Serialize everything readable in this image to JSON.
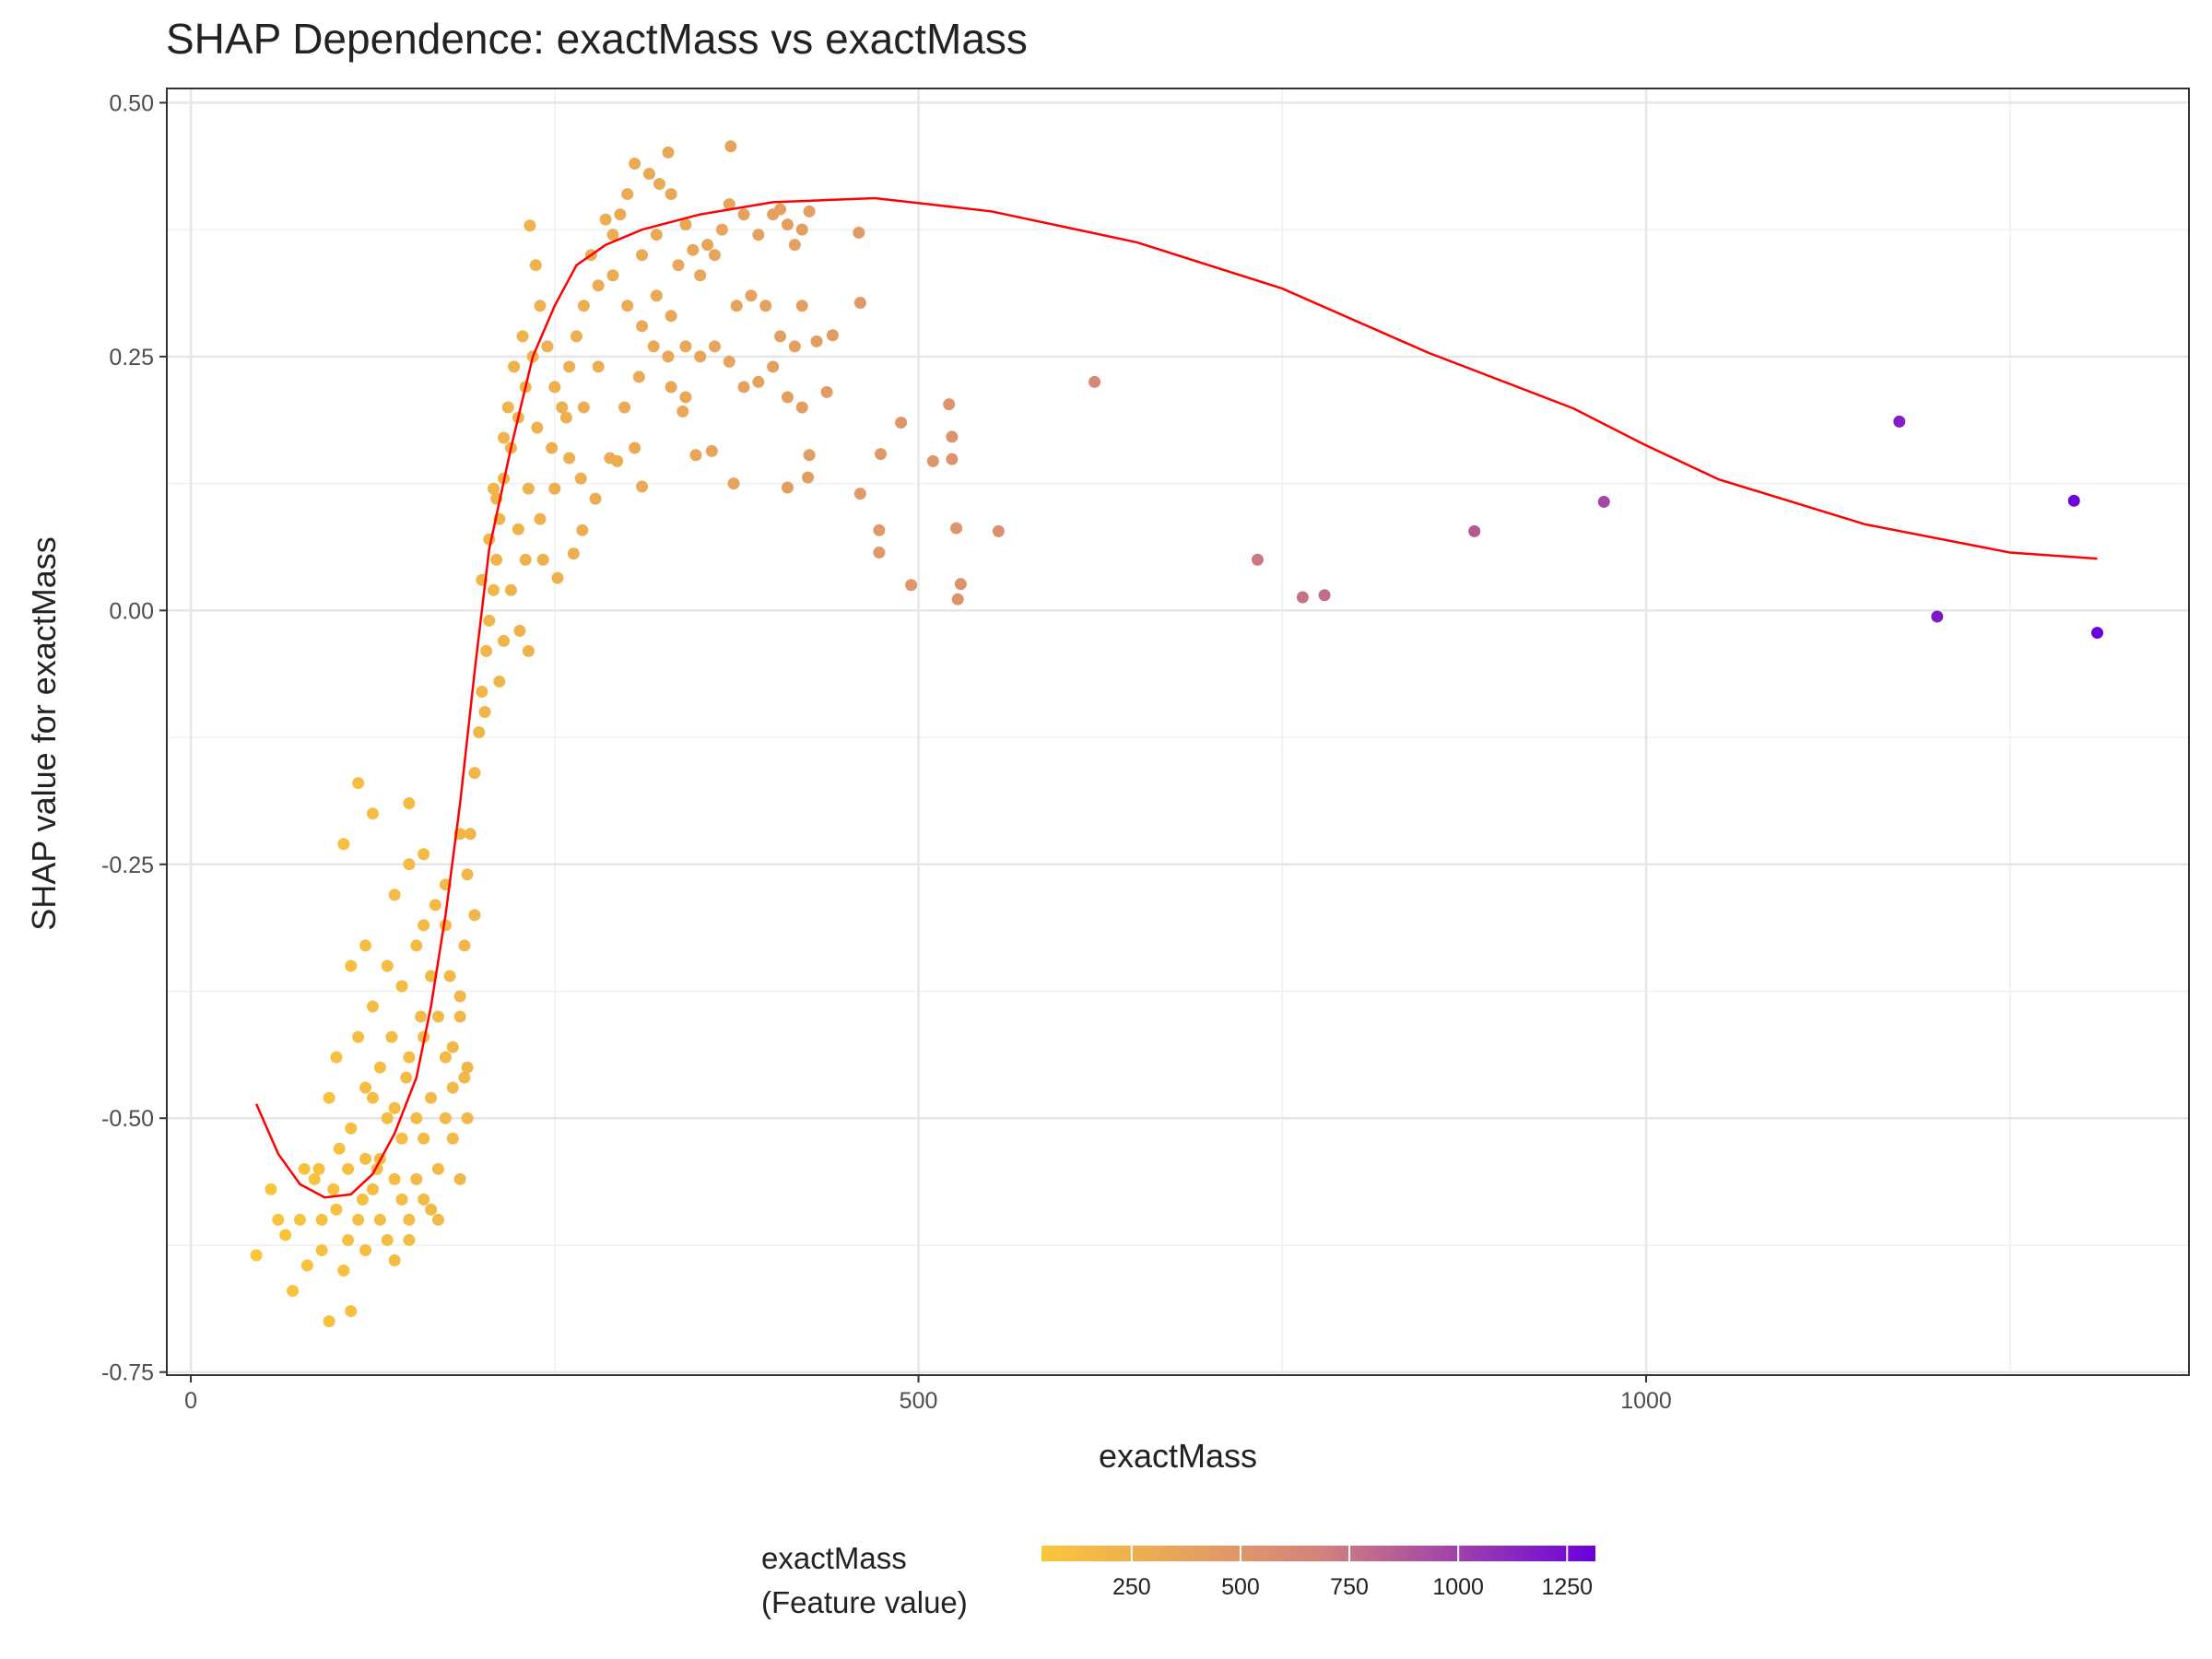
{
  "chart_data": {
    "type": "scatter",
    "title": "SHAP Dependence: exactMass vs exactMass",
    "x_label": "exactMass",
    "y_label": "SHAP value for exactMass",
    "xlim": [
      -16.5,
      1373
    ],
    "ylim": [
      -0.753,
      0.514
    ],
    "xticks": [
      0,
      500,
      1000
    ],
    "yticks": [
      {
        "value": 0.5,
        "label": "0.50"
      },
      {
        "value": 0.25,
        "label": "0.25"
      },
      {
        "value": 0,
        "label": "0.00"
      },
      {
        "value": -0.25,
        "label": "-0.25"
      },
      {
        "value": -0.5,
        "label": "-0.50"
      },
      {
        "value": -0.75,
        "label": "-0.75"
      }
    ],
    "grid": true,
    "x": [
      621,
      1174,
      971,
      1294,
      882,
      733,
      764,
      779,
      1200,
      1310,
      555,
      526,
      529,
      527,
      495,
      521,
      523,
      523,
      510,
      488,
      474,
      473,
      473,
      460,
      460,
      459,
      441,
      437,
      425,
      424,
      410,
      373,
      371,
      328,
      358,
      347,
      338,
      310,
      305,
      293,
      269,
      252,
      263,
      233,
      237,
      400,
      410,
      420,
      415,
      425,
      405,
      390,
      380,
      370,
      365,
      355,
      345,
      340,
      330,
      322,
      315,
      305,
      300,
      295,
      290,
      285,
      310,
      320,
      335,
      350,
      360,
      375,
      385,
      395,
      405,
      415,
      420,
      430,
      410,
      420,
      400,
      390,
      380,
      370,
      360,
      350,
      340,
      330,
      320,
      310,
      300,
      290,
      280,
      275,
      270,
      265,
      260,
      255,
      250,
      245,
      240,
      235,
      230,
      225,
      220,
      215,
      212,
      210,
      208,
      205,
      203,
      200,
      198,
      195,
      192,
      190,
      195,
      188,
      185,
      190,
      180,
      330,
      340,
      280,
      270,
      260,
      250,
      240,
      230,
      225,
      220,
      215,
      218,
      228,
      238,
      248,
      258,
      268,
      278,
      288,
      298,
      308,
      318,
      328,
      215,
      210,
      222,
      232,
      242,
      205,
      200,
      212,
      202,
      208,
      226,
      232,
      45,
      55,
      60,
      65,
      70,
      75,
      80,
      85,
      90,
      95,
      100,
      105,
      110,
      102,
      108,
      115,
      120,
      125,
      130,
      135,
      140,
      145,
      150,
      155,
      160,
      165,
      170,
      175,
      180,
      185,
      95,
      110,
      120,
      130,
      140,
      150,
      160,
      170,
      180,
      190,
      115,
      125,
      135,
      145,
      155,
      165,
      175,
      185,
      110,
      120,
      140,
      150,
      160,
      175,
      185,
      105,
      115,
      125,
      150,
      160,
      100,
      90,
      130,
      150,
      170,
      160,
      140,
      120,
      145,
      165,
      175,
      155,
      135,
      125,
      188,
      178,
      168,
      158,
      148,
      138,
      128,
      118,
      108,
      98,
      88,
      78
    ],
    "values": [
      0.225,
      0.186,
      0.107,
      0.108,
      0.078,
      0.05,
      0.013,
      0.015,
      -0.006,
      -0.022,
      0.078,
      0.081,
      0.026,
      0.011,
      0.025,
      0.203,
      0.171,
      0.149,
      0.147,
      0.185,
      0.154,
      0.079,
      0.057,
      0.115,
      0.303,
      0.372,
      0.271,
      0.215,
      0.153,
      0.131,
      0.121,
      0.125,
      0.457,
      0.451,
      0.157,
      0.153,
      0.196,
      0.122,
      0.16,
      0.147,
      0.079,
      0.032,
      0.056,
      0.379,
      0.34,
      0.39,
      0.38,
      0.375,
      0.36,
      0.393,
      0.395,
      0.37,
      0.39,
      0.4,
      0.375,
      0.36,
      0.355,
      0.38,
      0.41,
      0.42,
      0.43,
      0.44,
      0.41,
      0.39,
      0.37,
      0.385,
      0.35,
      0.37,
      0.34,
      0.33,
      0.35,
      0.3,
      0.31,
      0.3,
      0.27,
      0.26,
      0.3,
      0.265,
      0.21,
      0.2,
      0.24,
      0.225,
      0.22,
      0.245,
      0.26,
      0.25,
      0.26,
      0.29,
      0.31,
      0.28,
      0.3,
      0.33,
      0.32,
      0.35,
      0.3,
      0.27,
      0.24,
      0.2,
      0.22,
      0.26,
      0.3,
      0.25,
      0.22,
      0.19,
      0.16,
      0.13,
      0.09,
      0.05,
      0.02,
      -0.01,
      -0.04,
      -0.08,
      -0.12,
      -0.16,
      -0.22,
      -0.26,
      -0.3,
      -0.33,
      -0.4,
      -0.45,
      -0.43,
      0.22,
      0.21,
      0.24,
      0.2,
      0.15,
      0.12,
      0.09,
      0.05,
      0.08,
      0.02,
      -0.03,
      0.2,
      0.27,
      0.18,
      0.16,
      0.19,
      0.13,
      0.11,
      0.15,
      0.2,
      0.23,
      0.26,
      0.25,
      0.17,
      0.11,
      0.24,
      0.12,
      0.05,
      0.07,
      0.03,
      -0.07,
      -0.1,
      0.12,
      -0.02,
      -0.04,
      -0.635,
      -0.57,
      -0.6,
      -0.615,
      -0.67,
      -0.6,
      -0.645,
      -0.56,
      -0.63,
      -0.7,
      -0.59,
      -0.65,
      -0.69,
      -0.53,
      -0.55,
      -0.6,
      -0.63,
      -0.57,
      -0.54,
      -0.62,
      -0.64,
      -0.58,
      -0.6,
      -0.56,
      -0.52,
      -0.59,
      -0.55,
      -0.5,
      -0.52,
      -0.56,
      -0.48,
      -0.51,
      -0.47,
      -0.45,
      -0.49,
      -0.44,
      -0.42,
      -0.4,
      -0.47,
      -0.5,
      -0.42,
      -0.39,
      -0.35,
      -0.37,
      -0.33,
      -0.36,
      -0.31,
      -0.38,
      -0.35,
      -0.33,
      -0.28,
      -0.25,
      -0.31,
      -0.27,
      -0.22,
      -0.23,
      -0.17,
      -0.2,
      -0.19,
      -0.24,
      -0.44,
      -0.6,
      -0.6,
      -0.62,
      -0.6,
      -0.58,
      -0.56,
      -0.54,
      -0.52,
      -0.48,
      -0.44,
      -0.5,
      -0.5,
      -0.48,
      -0.46,
      -0.36,
      -0.29,
      -0.4,
      -0.46,
      -0.42,
      -0.55,
      -0.58,
      -0.62,
      -0.57,
      -0.55,
      -0.55
    ],
    "smooth": {
      "color": "#ff0000",
      "x": [
        45,
        60,
        75,
        92,
        110,
        125,
        140,
        155,
        165,
        175,
        185,
        195,
        205,
        220,
        235,
        250,
        265,
        285,
        310,
        350,
        400,
        470,
        550,
        650,
        750,
        850,
        950,
        1000,
        1050,
        1150,
        1250,
        1310
      ],
      "values": [
        -0.486,
        -0.535,
        -0.565,
        -0.578,
        -0.575,
        -0.555,
        -0.515,
        -0.46,
        -0.39,
        -0.3,
        -0.19,
        -0.06,
        0.06,
        0.16,
        0.25,
        0.3,
        0.34,
        0.36,
        0.375,
        0.39,
        0.402,
        0.406,
        0.393,
        0.3625,
        0.317,
        0.254,
        0.199,
        0.1625,
        0.129,
        0.085,
        0.057,
        0.051
      ]
    },
    "colorbar": {
      "title": [
        "exactMass",
        "(Feature value)"
      ],
      "colors": [
        "#fac63a",
        "#d4837c",
        "#6a00dc"
      ],
      "lim": [
        43,
        1315
      ],
      "ticks": [
        250,
        500,
        750,
        1000,
        1250
      ]
    }
  }
}
